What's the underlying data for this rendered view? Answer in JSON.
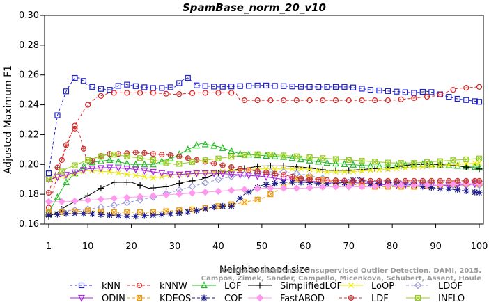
{
  "chart_data": {
    "type": "line",
    "title": "SpamBase_norm_20_v10",
    "xlabel": "Neighborhood size",
    "ylabel": "Adjusted Maximum F1",
    "xlim": [
      1,
      100
    ],
    "ylim": [
      0.16,
      0.3
    ],
    "x_ticks": [
      1,
      10,
      20,
      30,
      40,
      50,
      60,
      70,
      80,
      90,
      100
    ],
    "y_ticks": [
      "0.16",
      "0.18",
      "0.20",
      "0.22",
      "0.24",
      "0.26",
      "0.28",
      "0.30"
    ],
    "grid": false,
    "legend_position": "bottom",
    "series": [
      {
        "name": "kNN",
        "color": "#1f1fd0",
        "dash": "4,3",
        "marker": "square",
        "x": [
          1,
          2,
          3,
          4,
          5,
          6,
          7,
          8,
          9,
          10,
          12,
          15,
          18,
          22,
          26,
          30,
          32,
          33,
          35,
          40,
          50,
          60,
          70,
          75,
          80,
          85,
          88,
          90,
          92,
          95,
          100
        ],
        "y": [
          0.194,
          0.214,
          0.233,
          0.241,
          0.249,
          0.254,
          0.258,
          0.258,
          0.256,
          0.253,
          0.251,
          0.25,
          0.254,
          0.252,
          0.251,
          0.252,
          0.257,
          0.258,
          0.253,
          0.252,
          0.253,
          0.252,
          0.252,
          0.25,
          0.249,
          0.248,
          0.249,
          0.248,
          0.246,
          0.244,
          0.242
        ]
      },
      {
        "name": "kNNW",
        "color": "#e02020",
        "dash": "4,3",
        "marker": "circle",
        "x": [
          1,
          2,
          3,
          4,
          5,
          6,
          7,
          8,
          9,
          10,
          12,
          15,
          20,
          25,
          30,
          35,
          40,
          43,
          44,
          45,
          50,
          60,
          70,
          80,
          90,
          92,
          95,
          100
        ],
        "y": [
          0.171,
          0.182,
          0.193,
          0.203,
          0.211,
          0.219,
          0.226,
          0.231,
          0.236,
          0.24,
          0.245,
          0.248,
          0.248,
          0.248,
          0.247,
          0.248,
          0.248,
          0.248,
          0.248,
          0.243,
          0.243,
          0.243,
          0.243,
          0.243,
          0.246,
          0.248,
          0.251,
          0.252
        ]
      },
      {
        "name": "LOF",
        "color": "#22bb22",
        "dash": "",
        "marker": "triangle-up",
        "x": [
          1,
          3,
          5,
          7,
          10,
          15,
          20,
          25,
          30,
          33,
          36,
          40,
          45,
          50,
          55,
          60,
          65,
          70,
          75,
          80,
          85,
          90,
          95,
          100
        ],
        "y": [
          0.168,
          0.178,
          0.188,
          0.194,
          0.201,
          0.203,
          0.2,
          0.2,
          0.205,
          0.21,
          0.214,
          0.212,
          0.207,
          0.206,
          0.205,
          0.203,
          0.201,
          0.2,
          0.199,
          0.199,
          0.2,
          0.2,
          0.199,
          0.198
        ]
      },
      {
        "name": "SimplifiedLOF",
        "color": "#000000",
        "dash": "",
        "marker": "plus",
        "x": [
          1,
          3,
          5,
          7,
          10,
          13,
          16,
          20,
          24,
          28,
          32,
          36,
          40,
          45,
          50,
          55,
          60,
          65,
          70,
          75,
          80,
          85,
          90,
          95,
          100
        ],
        "y": [
          0.165,
          0.168,
          0.172,
          0.175,
          0.179,
          0.184,
          0.188,
          0.188,
          0.184,
          0.185,
          0.188,
          0.19,
          0.194,
          0.197,
          0.199,
          0.199,
          0.198,
          0.196,
          0.196,
          0.197,
          0.198,
          0.2,
          0.2,
          0.199,
          0.197
        ]
      },
      {
        "name": "LoOP",
        "color": "#e8e800",
        "dash": "",
        "marker": "x",
        "x": [
          1,
          5,
          10,
          15,
          20,
          25,
          30,
          35,
          40,
          45,
          50,
          55,
          60,
          65,
          70,
          75,
          80,
          85,
          90,
          95,
          100
        ],
        "y": [
          0.19,
          0.192,
          0.196,
          0.195,
          0.193,
          0.191,
          0.193,
          0.194,
          0.195,
          0.196,
          0.197,
          0.197,
          0.197,
          0.195,
          0.195,
          0.196,
          0.197,
          0.198,
          0.199,
          0.2,
          0.201
        ]
      },
      {
        "name": "LDOF",
        "color": "#9a9ad8",
        "dash": "4,3",
        "marker": "diamond",
        "x": [
          1,
          5,
          10,
          15,
          20,
          25,
          30,
          35,
          40,
          45,
          50,
          55,
          60,
          65,
          70,
          75,
          80,
          85,
          90,
          95,
          100
        ],
        "y": [
          0.168,
          0.169,
          0.17,
          0.172,
          0.175,
          0.178,
          0.182,
          0.186,
          0.19,
          0.193,
          0.195,
          0.195,
          0.193,
          0.19,
          0.188,
          0.187,
          0.187,
          0.187,
          0.186,
          0.186,
          0.186
        ]
      },
      {
        "name": "ODIN",
        "color": "#aa22dd",
        "dash": "",
        "marker": "triangle-down",
        "x": [
          1,
          5,
          10,
          15,
          20,
          25,
          30,
          35,
          40,
          45,
          50,
          55,
          60,
          65,
          70,
          75,
          80,
          85,
          90,
          95,
          100
        ],
        "y": [
          0.19,
          0.193,
          0.197,
          0.198,
          0.197,
          0.195,
          0.193,
          0.194,
          0.194,
          0.193,
          0.192,
          0.19,
          0.189,
          0.188,
          0.188,
          0.187,
          0.186,
          0.186,
          0.186,
          0.186,
          0.187
        ]
      },
      {
        "name": "KDEOS",
        "color": "#ee9900",
        "dash": "4,3",
        "marker": "square-x",
        "x": [
          1,
          5,
          10,
          15,
          20,
          25,
          30,
          35,
          40,
          45,
          50,
          52,
          55,
          58,
          60,
          65,
          70,
          75,
          80,
          85,
          90,
          95,
          100
        ],
        "y": [
          0.168,
          0.168,
          0.169,
          0.168,
          0.168,
          0.168,
          0.169,
          0.17,
          0.172,
          0.174,
          0.177,
          0.18,
          0.185,
          0.19,
          0.192,
          0.189,
          0.187,
          0.185,
          0.185,
          0.185,
          0.186,
          0.187,
          0.187
        ]
      },
      {
        "name": "COF",
        "color": "#1a1a88",
        "dash": "4,3",
        "marker": "asterisk",
        "x": [
          1,
          5,
          10,
          15,
          20,
          25,
          30,
          35,
          40,
          43,
          46,
          50,
          55,
          60,
          65,
          70,
          72,
          75,
          80,
          85,
          90,
          95,
          100
        ],
        "y": [
          0.166,
          0.167,
          0.167,
          0.166,
          0.165,
          0.166,
          0.167,
          0.169,
          0.172,
          0.172,
          0.18,
          0.186,
          0.188,
          0.188,
          0.187,
          0.188,
          0.191,
          0.187,
          0.188,
          0.186,
          0.184,
          0.183,
          0.181
        ]
      },
      {
        "name": "FastABOD",
        "color": "#ff99ee",
        "dash": "",
        "marker": "diamond-filled",
        "x": [
          1,
          5,
          10,
          15,
          20,
          25,
          30,
          35,
          40,
          45,
          50,
          55,
          60,
          65,
          70,
          75,
          80,
          85,
          90,
          95,
          100
        ],
        "y": [
          0.175,
          0.175,
          0.176,
          0.177,
          0.178,
          0.179,
          0.18,
          0.181,
          0.182,
          0.183,
          0.184,
          0.184,
          0.184,
          0.185,
          0.185,
          0.185,
          0.186,
          0.186,
          0.186,
          0.187,
          0.187
        ]
      },
      {
        "name": "LDF",
        "color": "#cc3333",
        "dash": "4,3",
        "marker": "circle-plus",
        "x": [
          1,
          2,
          3,
          4,
          5,
          6,
          7,
          8,
          10,
          12,
          15,
          18,
          20,
          22,
          25,
          30,
          35,
          40,
          45,
          50,
          55,
          60,
          70,
          80,
          90,
          100
        ],
        "y": [
          0.181,
          0.19,
          0.198,
          0.204,
          0.213,
          0.22,
          0.224,
          0.221,
          0.2,
          0.205,
          0.207,
          0.207,
          0.208,
          0.208,
          0.207,
          0.206,
          0.203,
          0.2,
          0.197,
          0.195,
          0.193,
          0.19,
          0.189,
          0.189,
          0.189,
          0.189
        ]
      },
      {
        "name": "INFLO",
        "color": "#99cc22",
        "dash": "",
        "marker": "square-x",
        "x": [
          1,
          5,
          10,
          15,
          20,
          25,
          30,
          35,
          40,
          45,
          50,
          55,
          60,
          65,
          70,
          75,
          80,
          85,
          90,
          95,
          100
        ],
        "y": [
          0.19,
          0.197,
          0.203,
          0.207,
          0.205,
          0.203,
          0.2,
          0.202,
          0.204,
          0.206,
          0.207,
          0.206,
          0.205,
          0.204,
          0.203,
          0.202,
          0.201,
          0.201,
          0.202,
          0.203,
          0.204
        ]
      }
    ]
  },
  "watermark": {
    "line1": "Campos, Zimek, Sander, Campello, Micenkova, Schubert, Assent, Houle",
    "line2": "On the Evaluation of Unsupervised Outlier Detection. DAMI, 2015."
  }
}
